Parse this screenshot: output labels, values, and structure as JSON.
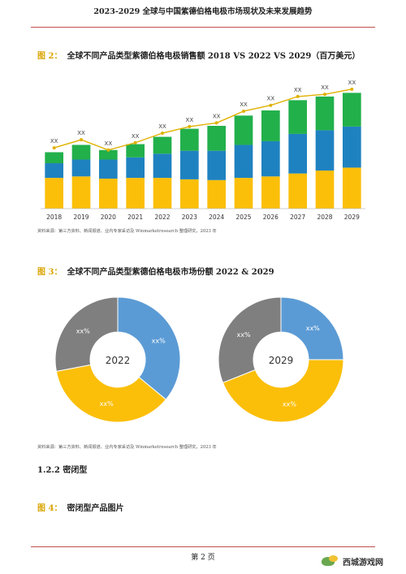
{
  "header": {
    "title": "2023-2029 全球与中国紫德伯格电极市场现状及未来发展趋势"
  },
  "figure2": {
    "label": "图 2：",
    "title": "全球不同产品类型紫德伯格电极销售额 2018 VS 2022 VS 2029（百万美元）",
    "source": "资料来源：第三方资料、新闻报道、业内专家采访及 Winmarketresearch 整理研究，2023 年"
  },
  "figure3": {
    "label": "图 3：",
    "title": "全球不同产品类型紫德伯格电极市场份额 2022 & 2029",
    "source": "资料来源：第三方资料、新闻报道、业内专家采访及 Winmarketresearch 整理研究，2023 年"
  },
  "section": {
    "heading": "1.2.2 密闭型"
  },
  "figure4": {
    "label": "图 4：",
    "title": "密闭型产品图片"
  },
  "footer": {
    "page": "第 2 页"
  },
  "watermark": {
    "text": "西城游戏网"
  },
  "chart_data": [
    {
      "type": "bar",
      "stacked": true,
      "categories": [
        "2018",
        "2019",
        "2020",
        "2021",
        "2022",
        "2023",
        "2024",
        "2025",
        "2026",
        "2027",
        "2028",
        "2029"
      ],
      "series": [
        {
          "color": "#fbbf0a",
          "values": [
            42,
            44,
            41,
            42,
            42,
            40,
            39,
            42,
            44,
            48,
            52,
            56
          ]
        },
        {
          "color": "#1f82c0",
          "values": [
            20,
            23,
            26,
            28,
            33,
            39,
            40,
            45,
            48,
            54,
            55,
            56
          ]
        },
        {
          "color": "#22b04b",
          "values": [
            15,
            20,
            13,
            18,
            23,
            30,
            34,
            40,
            42,
            46,
            46,
            46
          ]
        }
      ],
      "line": {
        "color": "#e0b100",
        "values": [
          83,
          94,
          80,
          90,
          103,
          112,
          117,
          133,
          141,
          153,
          156,
          163
        ]
      },
      "data_labels": [
        "XX",
        "XX",
        "XX",
        "XX",
        "XX",
        "XX",
        "XX",
        "XX",
        "XX",
        "XX",
        "XX",
        "XX"
      ],
      "ylim": [
        0,
        185
      ]
    },
    {
      "type": "pie",
      "donut": true,
      "center_label": "2022",
      "slices": [
        {
          "label": "xx%",
          "value": 36,
          "color": "#5b9bd5"
        },
        {
          "label": "xx%",
          "value": 36,
          "color": "#fbbf0a"
        },
        {
          "label": "xx%",
          "value": 28,
          "color": "#7f7f7f"
        }
      ]
    },
    {
      "type": "pie",
      "donut": true,
      "center_label": "2029",
      "slices": [
        {
          "label": "xx%",
          "value": 25,
          "color": "#5b9bd5"
        },
        {
          "label": "xx%",
          "value": 44,
          "color": "#fbbf0a"
        },
        {
          "label": "xx%",
          "value": 31,
          "color": "#7f7f7f"
        }
      ]
    }
  ]
}
